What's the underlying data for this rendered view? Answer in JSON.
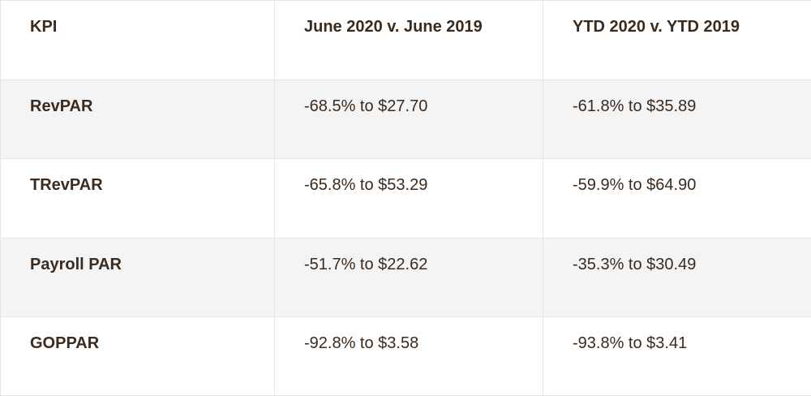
{
  "table": {
    "headers": [
      "KPI",
      "June 2020 v. June 2019",
      "YTD 2020 v. YTD 2019"
    ],
    "rows": [
      {
        "kpi": "RevPAR",
        "june": "-68.5% to $27.70",
        "ytd": "-61.8% to $35.89"
      },
      {
        "kpi": "TRevPAR",
        "june": "-65.8% to $53.29",
        "ytd": "-59.9% to $64.90"
      },
      {
        "kpi": "Payroll PAR",
        "june": "-51.7% to $22.62",
        "ytd": "-35.3% to $30.49"
      },
      {
        "kpi": "GOPPAR",
        "june": "-92.8% to $3.58",
        "ytd": "-93.8% to $3.41"
      }
    ]
  },
  "colors": {
    "text": "#3b2a1e",
    "shaded_row": "#f4f4f4",
    "border": "#e6e6e6"
  }
}
